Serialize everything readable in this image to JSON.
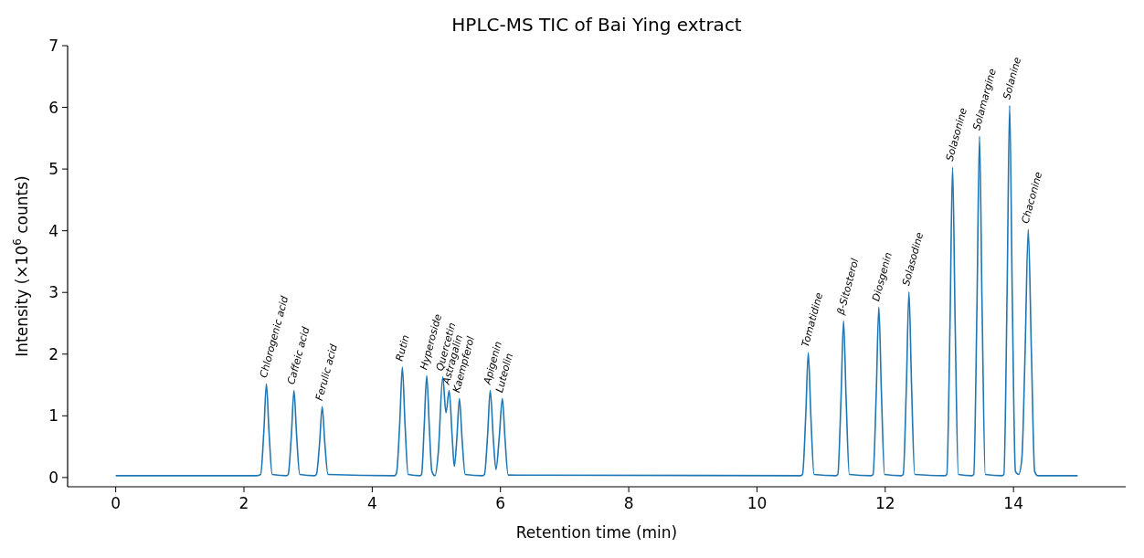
{
  "chart_data": {
    "type": "line",
    "title": "HPLC-MS TIC of Bai Ying extract",
    "xlabel": "Retention time (min)",
    "ylabel": "Intensity (×10$^{6}$ counts)",
    "xlim": [
      -0.75,
      15.75
    ],
    "ylim": [
      -0.15,
      7
    ],
    "xticks": [
      0,
      2,
      4,
      6,
      8,
      10,
      12,
      14
    ],
    "yticks": [
      0,
      1,
      2,
      3,
      4,
      5,
      6,
      7
    ],
    "grid": false,
    "x": [
      0,
      2.2,
      2.26,
      2.31,
      2.35,
      2.39,
      2.44,
      2.67,
      2.69,
      2.74,
      2.78,
      2.82,
      2.87,
      3.1,
      3.13,
      3.18,
      3.22,
      3.26,
      3.31,
      4.35,
      4.38,
      4.43,
      4.47,
      4.51,
      4.56,
      4.75,
      4.77,
      4.81,
      4.85,
      4.89,
      4.93,
      4.98,
      5.03,
      5.1,
      5.15,
      5.2,
      5.25,
      5.28,
      5.32,
      5.36,
      5.4,
      5.45,
      5.72,
      5.75,
      5.8,
      5.84,
      5.89,
      5.93,
      5.98,
      6.03,
      6.07,
      6.12,
      10.68,
      10.71,
      10.76,
      10.8,
      10.84,
      10.89,
      11.23,
      11.26,
      11.31,
      11.35,
      11.39,
      11.44,
      11.78,
      11.81,
      11.86,
      11.9,
      11.94,
      11.99,
      12.25,
      12.28,
      12.33,
      12.37,
      12.41,
      12.46,
      12.93,
      12.96,
      13.01,
      13.05,
      13.09,
      13.14,
      13.35,
      13.38,
      13.43,
      13.47,
      13.51,
      13.56,
      13.82,
      13.85,
      13.9,
      13.94,
      13.98,
      14.03,
      14.08,
      14.13,
      14.18,
      14.23,
      14.28,
      14.33,
      14.38,
      15
    ],
    "series": [
      {
        "color": "#1f77b4",
        "values": [
          0.03,
          0.03,
          0.05,
          0.75,
          1.52,
          0.75,
          0.05,
          0.03,
          0.05,
          0.7,
          1.41,
          0.7,
          0.05,
          0.03,
          0.05,
          0.57,
          1.15,
          0.57,
          0.05,
          0.03,
          0.08,
          0.9,
          1.79,
          0.9,
          0.05,
          0.03,
          0.05,
          0.82,
          1.65,
          0.82,
          0.1,
          0.03,
          0.4,
          1.63,
          1.05,
          1.41,
          0.6,
          0.18,
          0.64,
          1.28,
          0.64,
          0.05,
          0.03,
          0.05,
          0.7,
          1.41,
          0.6,
          0.13,
          0.64,
          1.28,
          0.64,
          0.04,
          0.03,
          0.05,
          1.0,
          2.02,
          1.0,
          0.05,
          0.03,
          0.05,
          1.27,
          2.54,
          1.27,
          0.05,
          0.03,
          0.05,
          1.38,
          2.76,
          1.38,
          0.05,
          0.03,
          0.05,
          1.5,
          3.01,
          1.5,
          0.05,
          0.03,
          0.05,
          2.5,
          5.03,
          2.5,
          0.05,
          0.03,
          0.05,
          2.76,
          5.53,
          2.76,
          0.05,
          0.03,
          0.05,
          3.0,
          6.03,
          3.0,
          0.1,
          0.05,
          0.3,
          2.0,
          4.02,
          2.0,
          0.1,
          0.03,
          0.03
        ]
      }
    ],
    "annotations": [
      {
        "text": "Chlorogenic acid",
        "x": 2.35,
        "y": 1.52
      },
      {
        "text": "Caffeic acid",
        "x": 2.78,
        "y": 1.41
      },
      {
        "text": "Ferulic acid",
        "x": 3.22,
        "y": 1.15
      },
      {
        "text": "Rutin",
        "x": 4.47,
        "y": 1.79
      },
      {
        "text": "Hyperoside",
        "x": 4.85,
        "y": 1.65
      },
      {
        "text": "Quercetin",
        "x": 5.1,
        "y": 1.63
      },
      {
        "text": "Astragalin",
        "x": 5.2,
        "y": 1.41
      },
      {
        "text": "Kaempferol",
        "x": 5.36,
        "y": 1.28
      },
      {
        "text": "Apigenin",
        "x": 5.84,
        "y": 1.41
      },
      {
        "text": "Luteolin",
        "x": 6.03,
        "y": 1.28
      },
      {
        "text": "Tomatidine",
        "x": 10.8,
        "y": 2.02
      },
      {
        "text": "β-Sitosterol",
        "x": 11.35,
        "y": 2.54
      },
      {
        "text": "Diosgenin",
        "x": 11.9,
        "y": 2.76
      },
      {
        "text": "Solasodine",
        "x": 12.37,
        "y": 3.01
      },
      {
        "text": "Solasonine",
        "x": 13.05,
        "y": 5.03
      },
      {
        "text": "Solamargine",
        "x": 13.47,
        "y": 5.53
      },
      {
        "text": "Solanine",
        "x": 13.94,
        "y": 6.03
      },
      {
        "text": "Chaconine",
        "x": 14.23,
        "y": 4.02
      }
    ]
  }
}
